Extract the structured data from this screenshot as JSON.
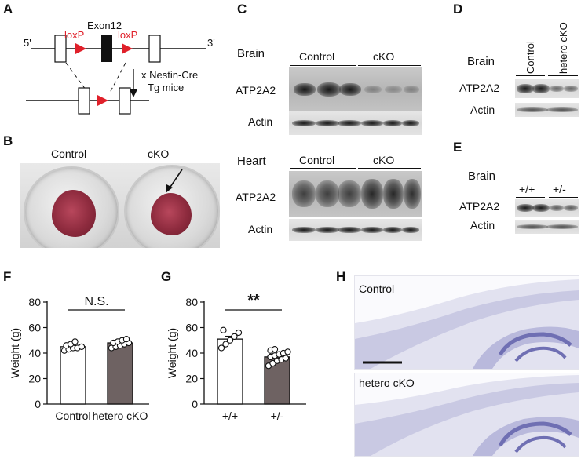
{
  "panels": {
    "a": "A",
    "b": "B",
    "c": "C",
    "d": "D",
    "e": "E",
    "f": "F",
    "g": "G",
    "h": "H"
  },
  "panel_a": {
    "exon": "Exon12",
    "loxp": "loxP",
    "five_prime": "5'",
    "three_prime": "3'",
    "cross_line1": "x Nestin-Cre",
    "cross_line2": "Tg mice",
    "loxp_color": "#e0202a"
  },
  "panel_b": {
    "control": "Control",
    "cko": "cKO"
  },
  "panel_c": {
    "brain": "Brain",
    "heart": "Heart",
    "control": "Control",
    "cko": "cKO",
    "atp2a2": "ATP2A2",
    "actin": "Actin"
  },
  "panel_d": {
    "brain": "Brain",
    "control": "Control",
    "hetero_cko": "hetero cKO",
    "atp2a2": "ATP2A2",
    "actin": "Actin"
  },
  "panel_e": {
    "brain": "Brain",
    "wt": "+/+",
    "het": "+/-",
    "atp2a2": "ATP2A2",
    "actin": "Actin"
  },
  "panel_h": {
    "control": "Control",
    "hetero_cko": "hetero cKO",
    "stain_color": "#6f6fb3"
  },
  "chart_data": [
    {
      "type": "bar",
      "panel": "F",
      "categories": [
        "Control",
        "hetero cKO"
      ],
      "values": [
        45,
        48
      ],
      "bar_colors": [
        "#ffffff",
        "#6e6262"
      ],
      "error": [
        1.2,
        1.3
      ],
      "points": [
        [
          42,
          43,
          44,
          44,
          45,
          46,
          47,
          49
        ],
        [
          44,
          45,
          46,
          47,
          48,
          48,
          49,
          50,
          51
        ]
      ],
      "ylabel": "Weight (g)",
      "ylim": [
        0,
        80
      ],
      "yticks": [
        0,
        20,
        40,
        60,
        80
      ],
      "significance": "N.S."
    },
    {
      "type": "bar",
      "panel": "G",
      "categories": [
        "+/+",
        "+/-"
      ],
      "values": [
        51,
        37
      ],
      "bar_colors": [
        "#ffffff",
        "#6e6262"
      ],
      "error": [
        2.2,
        1.4
      ],
      "points": [
        [
          44,
          47,
          50,
          53,
          56,
          58
        ],
        [
          30,
          32,
          34,
          35,
          36,
          37,
          38,
          39,
          40,
          41,
          42,
          43
        ]
      ],
      "ylabel": "Weight (g)",
      "ylim": [
        0,
        80
      ],
      "yticks": [
        0,
        20,
        40,
        60,
        80
      ],
      "significance": "**"
    }
  ]
}
